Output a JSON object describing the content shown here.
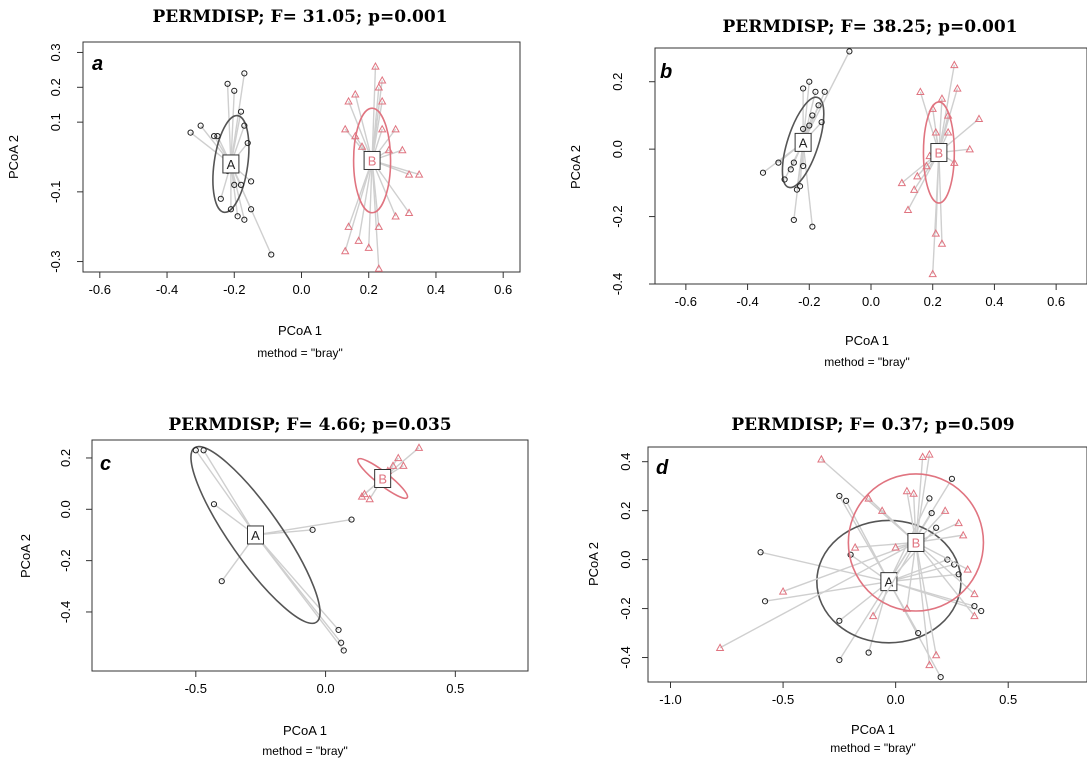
{
  "chart_data": [
    {
      "type": "scatter",
      "panel": "a",
      "title": "PERMDISP; F= 31.05; p=0.001",
      "xlabel": "PCoA 1",
      "sublabel": "method = \"bray\"",
      "ylabel": "PCoA 2",
      "xlim": [
        -0.65,
        0.65
      ],
      "ylim": [
        -0.33,
        0.33
      ],
      "xticks": [
        -0.6,
        -0.4,
        -0.2,
        0.0,
        0.2,
        0.4,
        0.6
      ],
      "xtick_labels": [
        "-0.6",
        "-0.4",
        "-0.2",
        "0.0",
        "0.2",
        "0.4",
        "0.6"
      ],
      "yticks": [
        -0.3,
        -0.1,
        0.1,
        0.2,
        0.3
      ],
      "ytick_labels": [
        "-0.3",
        "-0.1",
        "0.1",
        "0.2",
        "0.3"
      ],
      "legend": "none",
      "groups": [
        {
          "name": "A",
          "color": "#555555",
          "marker": "circle",
          "centroid": [
            -0.21,
            -0.02
          ],
          "ellipse": {
            "rx": 0.05,
            "ry": 0.14,
            "angle": 8
          },
          "points": [
            [
              -0.33,
              0.07
            ],
            [
              -0.3,
              0.09
            ],
            [
              -0.26,
              0.06
            ],
            [
              -0.25,
              0.06
            ],
            [
              -0.22,
              0.21
            ],
            [
              -0.2,
              0.19
            ],
            [
              -0.17,
              0.24
            ],
            [
              -0.18,
              0.13
            ],
            [
              -0.17,
              0.09
            ],
            [
              -0.16,
              0.04
            ],
            [
              -0.22,
              -0.04
            ],
            [
              -0.2,
              -0.08
            ],
            [
              -0.18,
              -0.08
            ],
            [
              -0.15,
              -0.07
            ],
            [
              -0.24,
              -0.12
            ],
            [
              -0.21,
              -0.15
            ],
            [
              -0.19,
              -0.17
            ],
            [
              -0.17,
              -0.18
            ],
            [
              -0.15,
              -0.15
            ],
            [
              -0.09,
              -0.28
            ]
          ]
        },
        {
          "name": "B",
          "color": "#e07480",
          "marker": "triangle",
          "centroid": [
            0.21,
            -0.01
          ],
          "ellipse": {
            "rx": 0.055,
            "ry": 0.15,
            "angle": 0
          },
          "points": [
            [
              0.13,
              0.08
            ],
            [
              0.14,
              0.16
            ],
            [
              0.16,
              0.18
            ],
            [
              0.16,
              0.06
            ],
            [
              0.18,
              0.03
            ],
            [
              0.22,
              0.26
            ],
            [
              0.23,
              0.2
            ],
            [
              0.24,
              0.22
            ],
            [
              0.24,
              0.16
            ],
            [
              0.24,
              0.08
            ],
            [
              0.26,
              0.02
            ],
            [
              0.28,
              0.08
            ],
            [
              0.3,
              0.02
            ],
            [
              0.32,
              -0.05
            ],
            [
              0.35,
              -0.05
            ],
            [
              0.14,
              -0.2
            ],
            [
              0.17,
              -0.24
            ],
            [
              0.2,
              -0.26
            ],
            [
              0.23,
              -0.2
            ],
            [
              0.28,
              -0.17
            ],
            [
              0.32,
              -0.16
            ],
            [
              0.13,
              -0.27
            ],
            [
              0.23,
              -0.32
            ]
          ]
        }
      ]
    },
    {
      "type": "scatter",
      "panel": "b",
      "title": "PERMDISP; F= 38.25; p=0.001",
      "xlabel": "PCoA 1",
      "sublabel": "method = \"bray\"",
      "ylabel": "PCoA 2",
      "xlim": [
        -0.7,
        0.7
      ],
      "ylim": [
        -0.4,
        0.3
      ],
      "xticks": [
        -0.6,
        -0.4,
        -0.2,
        0.0,
        0.2,
        0.4,
        0.6
      ],
      "xtick_labels": [
        "-0.6",
        "-0.4",
        "-0.2",
        "0.0",
        "0.2",
        "0.4",
        "0.6"
      ],
      "yticks": [
        -0.4,
        -0.2,
        0.0,
        0.2
      ],
      "ytick_labels": [
        "-0.4",
        "-0.2",
        "0.0",
        "0.2"
      ],
      "legend": "none",
      "groups": [
        {
          "name": "A",
          "color": "#555555",
          "marker": "circle",
          "centroid": [
            -0.22,
            0.02
          ],
          "ellipse": {
            "rx": 0.05,
            "ry": 0.14,
            "angle": 18
          },
          "points": [
            [
              -0.35,
              -0.07
            ],
            [
              -0.3,
              -0.04
            ],
            [
              -0.28,
              -0.09
            ],
            [
              -0.26,
              -0.06
            ],
            [
              -0.24,
              -0.12
            ],
            [
              -0.23,
              -0.11
            ],
            [
              -0.25,
              -0.04
            ],
            [
              -0.22,
              0.06
            ],
            [
              -0.2,
              0.07
            ],
            [
              -0.19,
              0.1
            ],
            [
              -0.18,
              0.17
            ],
            [
              -0.2,
              0.2
            ],
            [
              -0.22,
              0.18
            ],
            [
              -0.17,
              0.13
            ],
            [
              -0.16,
              0.08
            ],
            [
              -0.25,
              -0.21
            ],
            [
              -0.22,
              -0.05
            ],
            [
              -0.19,
              -0.23
            ],
            [
              -0.07,
              0.29
            ],
            [
              -0.15,
              0.17
            ]
          ]
        },
        {
          "name": "B",
          "color": "#e07480",
          "marker": "triangle",
          "centroid": [
            0.22,
            -0.01
          ],
          "ellipse": {
            "rx": 0.05,
            "ry": 0.15,
            "angle": 0
          },
          "points": [
            [
              0.12,
              -0.18
            ],
            [
              0.14,
              -0.12
            ],
            [
              0.15,
              -0.08
            ],
            [
              0.18,
              -0.05
            ],
            [
              0.19,
              -0.02
            ],
            [
              0.21,
              0.05
            ],
            [
              0.2,
              0.12
            ],
            [
              0.23,
              0.15
            ],
            [
              0.25,
              0.1
            ],
            [
              0.27,
              0.25
            ],
            [
              0.28,
              0.18
            ],
            [
              0.25,
              0.05
            ],
            [
              0.27,
              -0.04
            ],
            [
              0.32,
              0.0
            ],
            [
              0.35,
              0.09
            ],
            [
              0.21,
              -0.25
            ],
            [
              0.23,
              -0.28
            ],
            [
              0.2,
              -0.37
            ],
            [
              0.16,
              0.17
            ],
            [
              0.1,
              -0.1
            ]
          ]
        }
      ]
    },
    {
      "type": "scatter",
      "panel": "c",
      "title": "PERMDISP; F= 4.66; p=0.035",
      "xlabel": "PCoA 1",
      "sublabel": "method = \"bray\"",
      "ylabel": "PCoA 2",
      "xlim": [
        -0.9,
        0.78
      ],
      "ylim": [
        -0.63,
        0.27
      ],
      "xticks": [
        -0.5,
        0.0,
        0.5
      ],
      "xtick_labels": [
        "-0.5",
        "0.0",
        "0.5"
      ],
      "yticks": [
        -0.4,
        -0.2,
        0.0,
        0.2
      ],
      "ytick_labels": [
        "-0.4",
        "-0.2",
        "0.0",
        "0.2"
      ],
      "legend": "none",
      "groups": [
        {
          "name": "A",
          "color": "#555555",
          "marker": "circle",
          "centroid": [
            -0.27,
            -0.1
          ],
          "ellipse": {
            "rx": 0.41,
            "ry": 0.1,
            "angle": 55
          },
          "points": [
            [
              -0.5,
              0.23
            ],
            [
              -0.47,
              0.23
            ],
            [
              -0.43,
              0.02
            ],
            [
              -0.4,
              -0.28
            ],
            [
              -0.05,
              -0.08
            ],
            [
              0.1,
              -0.04
            ],
            [
              0.05,
              -0.47
            ],
            [
              0.06,
              -0.52
            ],
            [
              0.07,
              -0.55
            ]
          ]
        },
        {
          "name": "B",
          "color": "#e07480",
          "marker": "triangle",
          "centroid": [
            0.22,
            0.12
          ],
          "ellipse": {
            "rx": 0.12,
            "ry": 0.025,
            "angle": 38
          },
          "points": [
            [
              0.14,
              0.05
            ],
            [
              0.15,
              0.06
            ],
            [
              0.17,
              0.04
            ],
            [
              0.24,
              0.15
            ],
            [
              0.26,
              0.17
            ],
            [
              0.28,
              0.2
            ],
            [
              0.3,
              0.17
            ],
            [
              0.36,
              0.24
            ]
          ]
        }
      ]
    },
    {
      "type": "scatter",
      "panel": "d",
      "title": "PERMDISP; F= 0.37; p=0.509",
      "xlabel": "PCoA 1",
      "sublabel": "method = \"bray\"",
      "ylabel": "PCoA 2",
      "xlim": [
        -1.1,
        0.85
      ],
      "ylim": [
        -0.5,
        0.46
      ],
      "xticks": [
        -1.0,
        -0.5,
        0.0,
        0.5
      ],
      "xtick_labels": [
        "-1.0",
        "-0.5",
        "0.0",
        "0.5"
      ],
      "yticks": [
        -0.4,
        -0.2,
        0.0,
        0.2,
        0.4
      ],
      "ytick_labels": [
        "-0.4",
        "-0.2",
        "0.0",
        "0.2",
        "0.4"
      ],
      "legend": "none",
      "groups": [
        {
          "name": "A",
          "color": "#555555",
          "marker": "circle",
          "centroid": [
            -0.03,
            -0.09
          ],
          "ellipse": {
            "rx": 0.32,
            "ry": 0.25,
            "angle": 0
          },
          "points": [
            [
              -0.6,
              0.03
            ],
            [
              -0.58,
              -0.17
            ],
            [
              -0.25,
              0.26
            ],
            [
              -0.22,
              0.24
            ],
            [
              -0.2,
              0.02
            ],
            [
              -0.25,
              -0.25
            ],
            [
              -0.25,
              -0.41
            ],
            [
              -0.12,
              -0.38
            ],
            [
              0.1,
              -0.3
            ],
            [
              0.15,
              0.25
            ],
            [
              0.16,
              0.19
            ],
            [
              0.18,
              0.13
            ],
            [
              0.23,
              0.0
            ],
            [
              0.26,
              -0.02
            ],
            [
              0.28,
              -0.06
            ],
            [
              0.35,
              -0.19
            ],
            [
              0.38,
              -0.21
            ],
            [
              0.2,
              -0.48
            ],
            [
              0.25,
              0.33
            ]
          ]
        },
        {
          "name": "B",
          "color": "#e07480",
          "marker": "triangle",
          "centroid": [
            0.09,
            0.07
          ],
          "ellipse": {
            "rx": 0.3,
            "ry": 0.28,
            "angle": 0
          },
          "points": [
            [
              -0.78,
              -0.36
            ],
            [
              -0.5,
              -0.13
            ],
            [
              -0.33,
              0.41
            ],
            [
              -0.12,
              0.25
            ],
            [
              -0.06,
              0.2
            ],
            [
              0.05,
              0.28
            ],
            [
              0.08,
              0.27
            ],
            [
              0.12,
              0.42
            ],
            [
              0.15,
              0.43
            ],
            [
              0.22,
              0.2
            ],
            [
              0.28,
              0.15
            ],
            [
              0.3,
              0.1
            ],
            [
              0.32,
              -0.04
            ],
            [
              0.35,
              -0.14
            ],
            [
              0.35,
              -0.23
            ],
            [
              0.18,
              -0.39
            ],
            [
              0.15,
              -0.43
            ],
            [
              -0.1,
              -0.23
            ],
            [
              -0.18,
              0.05
            ],
            [
              0.0,
              0.05
            ],
            [
              0.05,
              -0.2
            ]
          ]
        }
      ]
    }
  ]
}
